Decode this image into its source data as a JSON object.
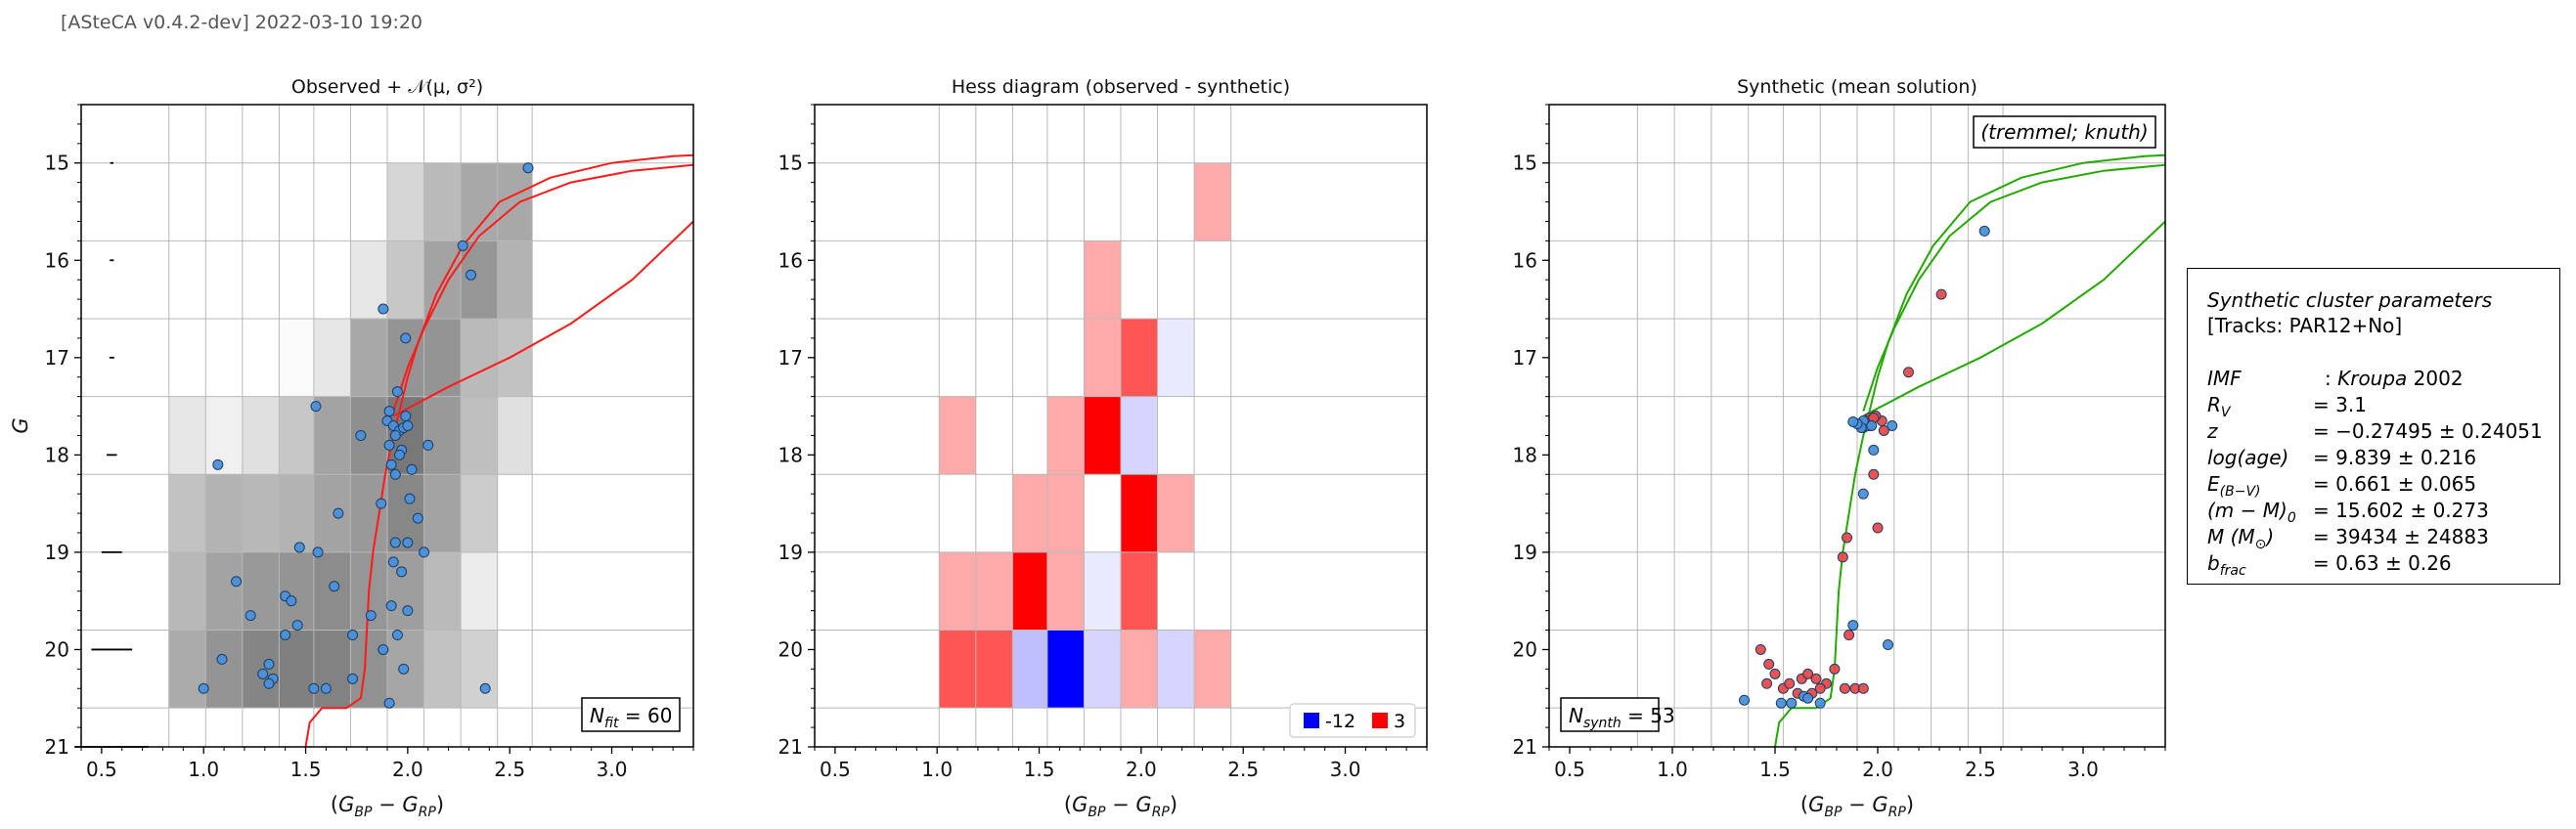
{
  "header": {
    "text": "[ASteCA v0.4.2-dev] 2022-03-10 19:20"
  },
  "chart_data": [
    {
      "type": "scatter",
      "title": "Observed + 𝒩(μ, σ²)",
      "xlabel": "(G_BP − G_RP)",
      "ylabel": "G",
      "xlim": [
        0.4,
        3.4
      ],
      "ylim": [
        21.0,
        14.4
      ],
      "xticks": [
        "0.5",
        "1.0",
        "1.5",
        "2.0",
        "2.5",
        "3.0"
      ],
      "yticks": [
        "15",
        "16",
        "17",
        "18",
        "19",
        "20",
        "21"
      ],
      "grid": true,
      "annotation": {
        "label": "N",
        "sub": "fit",
        "rel": "=",
        "value": "60",
        "position": "bottom-right"
      },
      "x_bin_edges": [
        0.83,
        1.01,
        1.19,
        1.37,
        1.54,
        1.72,
        1.9,
        2.08,
        2.26,
        2.44,
        2.61
      ],
      "y_bin_edges": [
        15.0,
        15.8,
        16.6,
        17.4,
        18.2,
        19.0,
        19.8,
        20.6
      ],
      "density_grid_desc": "rows from G=15 downward; values 0-1 gray intensity",
      "density_grid": [
        [
          0,
          0,
          0,
          0,
          0,
          0,
          0.16,
          0.27,
          0.34,
          0.34
        ],
        [
          0,
          0,
          0,
          0,
          0,
          0.1,
          0.22,
          0.36,
          0.41,
          0.3
        ],
        [
          0,
          0,
          0,
          0.02,
          0.1,
          0.34,
          0.42,
          0.42,
          0.27,
          0.24
        ],
        [
          0.1,
          0.06,
          0.12,
          0.22,
          0.36,
          0.44,
          0.53,
          0.4,
          0.25,
          0.12
        ],
        [
          0.24,
          0.3,
          0.28,
          0.3,
          0.36,
          0.4,
          0.47,
          0.36,
          0.2,
          0
        ],
        [
          0.28,
          0.36,
          0.4,
          0.42,
          0.45,
          0.41,
          0.38,
          0.27,
          0.08,
          0
        ],
        [
          0.33,
          0.42,
          0.48,
          0.5,
          0.49,
          0.43,
          0.35,
          0.24,
          0.18,
          0
        ]
      ],
      "error_bars": [
        {
          "g": 15.0,
          "half_width": 0.008
        },
        {
          "g": 16.0,
          "half_width": 0.01
        },
        {
          "g": 17.0,
          "half_width": 0.012
        },
        {
          "g": 18.0,
          "half_width": 0.025
        },
        {
          "g": 19.0,
          "half_width": 0.05
        },
        {
          "g": 20.0,
          "half_width": 0.1
        },
        {
          "g": 21.0,
          "half_width": 0.18
        }
      ],
      "series": [
        {
          "kind": "points",
          "color": "#4a90d9",
          "x": [
            2.59,
            2.27,
            2.31,
            1.88,
            1.99,
            1.95,
            1.91,
            1.9,
            1.93,
            1.96,
            1.98,
            2.0,
            1.94,
            1.91,
            1.97,
            2.02,
            1.92,
            1.94,
            1.96,
            1.99,
            2.1,
            2.01,
            2.05,
            2.0,
            1.87,
            1.93,
            2.08,
            1.66,
            1.55,
            1.47,
            1.77,
            1.94,
            1.97,
            2.0,
            1.64,
            1.92,
            1.95,
            1.16,
            1.23,
            1.4,
            1.43,
            1.46,
            1.4,
            1.32,
            1.29,
            1.6,
            1.73,
            1.82,
            1.88,
            1.98,
            1.34,
            1.32,
            1.09,
            1.54,
            1.73,
            1.91,
            2.38,
            1.07,
            1.56,
            1.0
          ],
          "y": [
            15.05,
            15.85,
            16.15,
            16.5,
            16.8,
            17.35,
            17.55,
            17.65,
            17.7,
            17.75,
            17.72,
            17.7,
            17.8,
            17.9,
            17.95,
            18.15,
            18.1,
            18.2,
            18.0,
            17.6,
            17.9,
            18.45,
            18.65,
            18.9,
            18.5,
            19.1,
            19.0,
            18.6,
            17.5,
            18.95,
            17.8,
            18.9,
            19.2,
            19.6,
            19.35,
            19.55,
            19.85,
            19.3,
            19.65,
            19.45,
            19.5,
            19.75,
            19.85,
            20.15,
            20.25,
            20.4,
            19.85,
            19.65,
            20.0,
            20.2,
            20.3,
            20.35,
            20.1,
            20.4,
            20.3,
            20.55,
            20.4,
            18.1,
            19.0,
            20.4
          ]
        },
        {
          "kind": "isochrone",
          "color": "#ff1a1a",
          "x": [
            1.5,
            1.52,
            1.58,
            1.7,
            1.77,
            1.79,
            1.8,
            1.81,
            1.83,
            1.86,
            1.89,
            1.93,
            1.96,
            2.0,
            2.05,
            2.14,
            2.27,
            2.45,
            2.7,
            3.0,
            3.3,
            3.4
          ],
          "y": [
            21.0,
            20.75,
            20.6,
            20.6,
            20.5,
            20.2,
            19.8,
            19.4,
            19.0,
            18.6,
            18.2,
            17.8,
            17.55,
            17.2,
            16.85,
            16.35,
            15.85,
            15.4,
            15.15,
            15.0,
            14.93,
            14.92
          ]
        },
        {
          "kind": "isochrone",
          "color": "#ff1a1a",
          "x": [
            1.93,
            2.0,
            2.08,
            2.2,
            2.35,
            2.55,
            2.8,
            3.1,
            3.4
          ],
          "y": [
            17.55,
            17.1,
            16.7,
            16.2,
            15.75,
            15.4,
            15.2,
            15.08,
            15.02
          ]
        },
        {
          "kind": "isochrone",
          "color": "#ff1a1a",
          "x": [
            1.93,
            2.2,
            2.5,
            2.8,
            3.1,
            3.4
          ],
          "y": [
            17.6,
            17.3,
            17.0,
            16.65,
            16.2,
            15.6
          ]
        }
      ]
    },
    {
      "type": "heatmap",
      "title": "Hess diagram (observed - synthetic)",
      "xlabel": "(G_BP − G_RP)",
      "xlim": [
        0.4,
        3.4
      ],
      "ylim": [
        21.0,
        14.4
      ],
      "xticks": [
        "0.5",
        "1.0",
        "1.5",
        "2.0",
        "2.5",
        "3.0"
      ],
      "yticks": [
        "15",
        "16",
        "17",
        "18",
        "19",
        "20",
        "21"
      ],
      "grid": true,
      "legend": {
        "position": "bottom-right",
        "entries": [
          {
            "label": "-12",
            "color": "#0000ff"
          },
          {
            "label": "3",
            "color": "#ff0000"
          }
        ]
      },
      "x_bin_edges": [
        1.01,
        1.19,
        1.37,
        1.54,
        1.72,
        1.9,
        2.08,
        2.26,
        2.44
      ],
      "y_bin_edges": [
        15.0,
        15.8,
        16.6,
        17.4,
        18.2,
        19.0,
        19.8,
        20.6
      ],
      "value_range": [
        -12,
        3
      ],
      "cells": [
        [
          0,
          0,
          0,
          0,
          0,
          0,
          0,
          1
        ],
        [
          0,
          0,
          0,
          0,
          1,
          0,
          0,
          0
        ],
        [
          0,
          0,
          0,
          0,
          1,
          2,
          -1,
          0
        ],
        [
          1,
          0,
          0,
          1,
          3,
          -2,
          0,
          0
        ],
        [
          0,
          0,
          1,
          1,
          0,
          3,
          1,
          0
        ],
        [
          1,
          1,
          3,
          1,
          -1,
          2,
          0,
          0
        ],
        [
          2,
          2,
          -3,
          -12,
          -2,
          1,
          -2,
          1
        ]
      ]
    },
    {
      "type": "scatter",
      "title": "Synthetic (mean solution)",
      "xlabel": "(G_BP − G_RP)",
      "xlim": [
        0.4,
        3.4
      ],
      "ylim": [
        21.0,
        14.4
      ],
      "xticks": [
        "0.5",
        "1.0",
        "1.5",
        "2.0",
        "2.5",
        "3.0"
      ],
      "yticks": [
        "15",
        "16",
        "17",
        "18",
        "19",
        "20",
        "21"
      ],
      "grid": true,
      "top_annotation": "(tremmel; knuth)",
      "annotation": {
        "label": "N",
        "sub": "synth",
        "rel": "=",
        "value": "53",
        "position": "bottom-left"
      },
      "series": [
        {
          "kind": "binary",
          "color": "#e84a4a",
          "x": [
            2.31,
            2.15,
            2.03,
            2.02,
            1.99,
            1.96,
            1.94,
            1.92,
            1.95,
            1.98,
            1.93,
            1.91,
            1.96,
            1.98,
            2.0,
            1.85,
            1.83,
            1.86,
            1.43,
            1.47,
            1.5,
            1.46,
            1.54,
            1.57,
            1.63,
            1.66,
            1.7,
            1.75,
            1.79,
            1.72,
            1.68,
            1.61,
            1.89,
            1.84,
            1.93
          ],
          "y": [
            16.35,
            17.15,
            17.75,
            17.65,
            17.6,
            17.62,
            17.68,
            17.7,
            17.65,
            17.62,
            17.72,
            17.68,
            17.7,
            18.2,
            18.75,
            18.85,
            19.05,
            19.85,
            20.0,
            20.15,
            20.25,
            20.35,
            20.4,
            20.35,
            20.3,
            20.25,
            20.3,
            20.35,
            20.2,
            20.4,
            20.45,
            20.45,
            20.4,
            20.4,
            20.4
          ]
        },
        {
          "kind": "single",
          "color": "#4a90d9",
          "x": [
            2.52,
            2.07,
            1.98,
            1.93,
            1.88,
            1.95,
            1.93,
            1.92,
            1.35,
            1.53,
            1.58,
            1.64,
            1.72,
            1.66,
            2.05,
            1.97,
            1.9,
            1.88
          ],
          "y": [
            15.7,
            17.7,
            17.95,
            18.4,
            19.75,
            17.7,
            17.65,
            17.72,
            20.52,
            20.55,
            20.55,
            20.48,
            20.55,
            20.5,
            19.95,
            17.7,
            17.68,
            17.66
          ]
        },
        {
          "kind": "isochrone",
          "color": "#22aa00",
          "x": [
            1.5,
            1.52,
            1.58,
            1.7,
            1.77,
            1.79,
            1.8,
            1.81,
            1.83,
            1.86,
            1.89,
            1.93,
            1.96,
            2.0,
            2.05,
            2.14,
            2.27,
            2.45,
            2.7,
            3.0,
            3.3,
            3.4
          ],
          "y": [
            21.0,
            20.75,
            20.6,
            20.6,
            20.5,
            20.2,
            19.8,
            19.4,
            19.0,
            18.6,
            18.2,
            17.8,
            17.55,
            17.2,
            16.85,
            16.35,
            15.85,
            15.4,
            15.15,
            15.0,
            14.93,
            14.92
          ]
        },
        {
          "kind": "isochrone",
          "color": "#22aa00",
          "x": [
            1.93,
            2.0,
            2.08,
            2.2,
            2.35,
            2.55,
            2.8,
            3.1,
            3.4
          ],
          "y": [
            17.55,
            17.1,
            16.7,
            16.2,
            15.75,
            15.4,
            15.2,
            15.08,
            15.02
          ]
        },
        {
          "kind": "isochrone",
          "color": "#22aa00",
          "x": [
            1.93,
            2.2,
            2.5,
            2.8,
            3.1,
            3.4
          ],
          "y": [
            17.6,
            17.3,
            17.0,
            16.65,
            16.2,
            15.6
          ]
        }
      ]
    }
  ],
  "params": {
    "title": "Synthetic cluster parameters",
    "tracks": "[Tracks: PAR12+No]",
    "rows": [
      {
        "label": "IMF",
        "sep": ":",
        "value": "Kroupa 2002"
      },
      {
        "label": "R",
        "sub": "V",
        "sep": "=",
        "value": "3.1"
      },
      {
        "label": "z",
        "sep": "=",
        "value": "−0.27495 ± 0.24051"
      },
      {
        "label": "log(age)",
        "sep": "=",
        "value": "9.839 ± 0.216"
      },
      {
        "label": "E",
        "sub": "(B−V)",
        "sep": "=",
        "value": "0.661 ± 0.065"
      },
      {
        "label": "(m − M)",
        "sub": "0",
        "sep": "=",
        "value": "15.602 ± 0.273"
      },
      {
        "label": "M (M",
        "sub": "⊙",
        "tail": ")",
        "sep": "=",
        "value": "39434 ± 24883"
      },
      {
        "label": "b",
        "sub": "frac",
        "sep": "=",
        "value": "0.63 ± 0.26"
      }
    ]
  }
}
